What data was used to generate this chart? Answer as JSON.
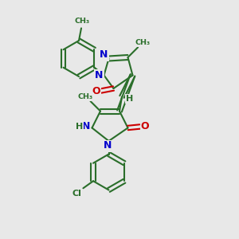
{
  "background_color": "#e8e8e8",
  "bond_color": "#2a6e2a",
  "N_color": "#0000cc",
  "O_color": "#cc0000",
  "Cl_color": "#2a6e2a",
  "H_color": "#2a6e2a",
  "figsize": [
    3.0,
    3.0
  ],
  "dpi": 100,
  "xlim": [
    0,
    10
  ],
  "ylim": [
    0,
    10
  ]
}
